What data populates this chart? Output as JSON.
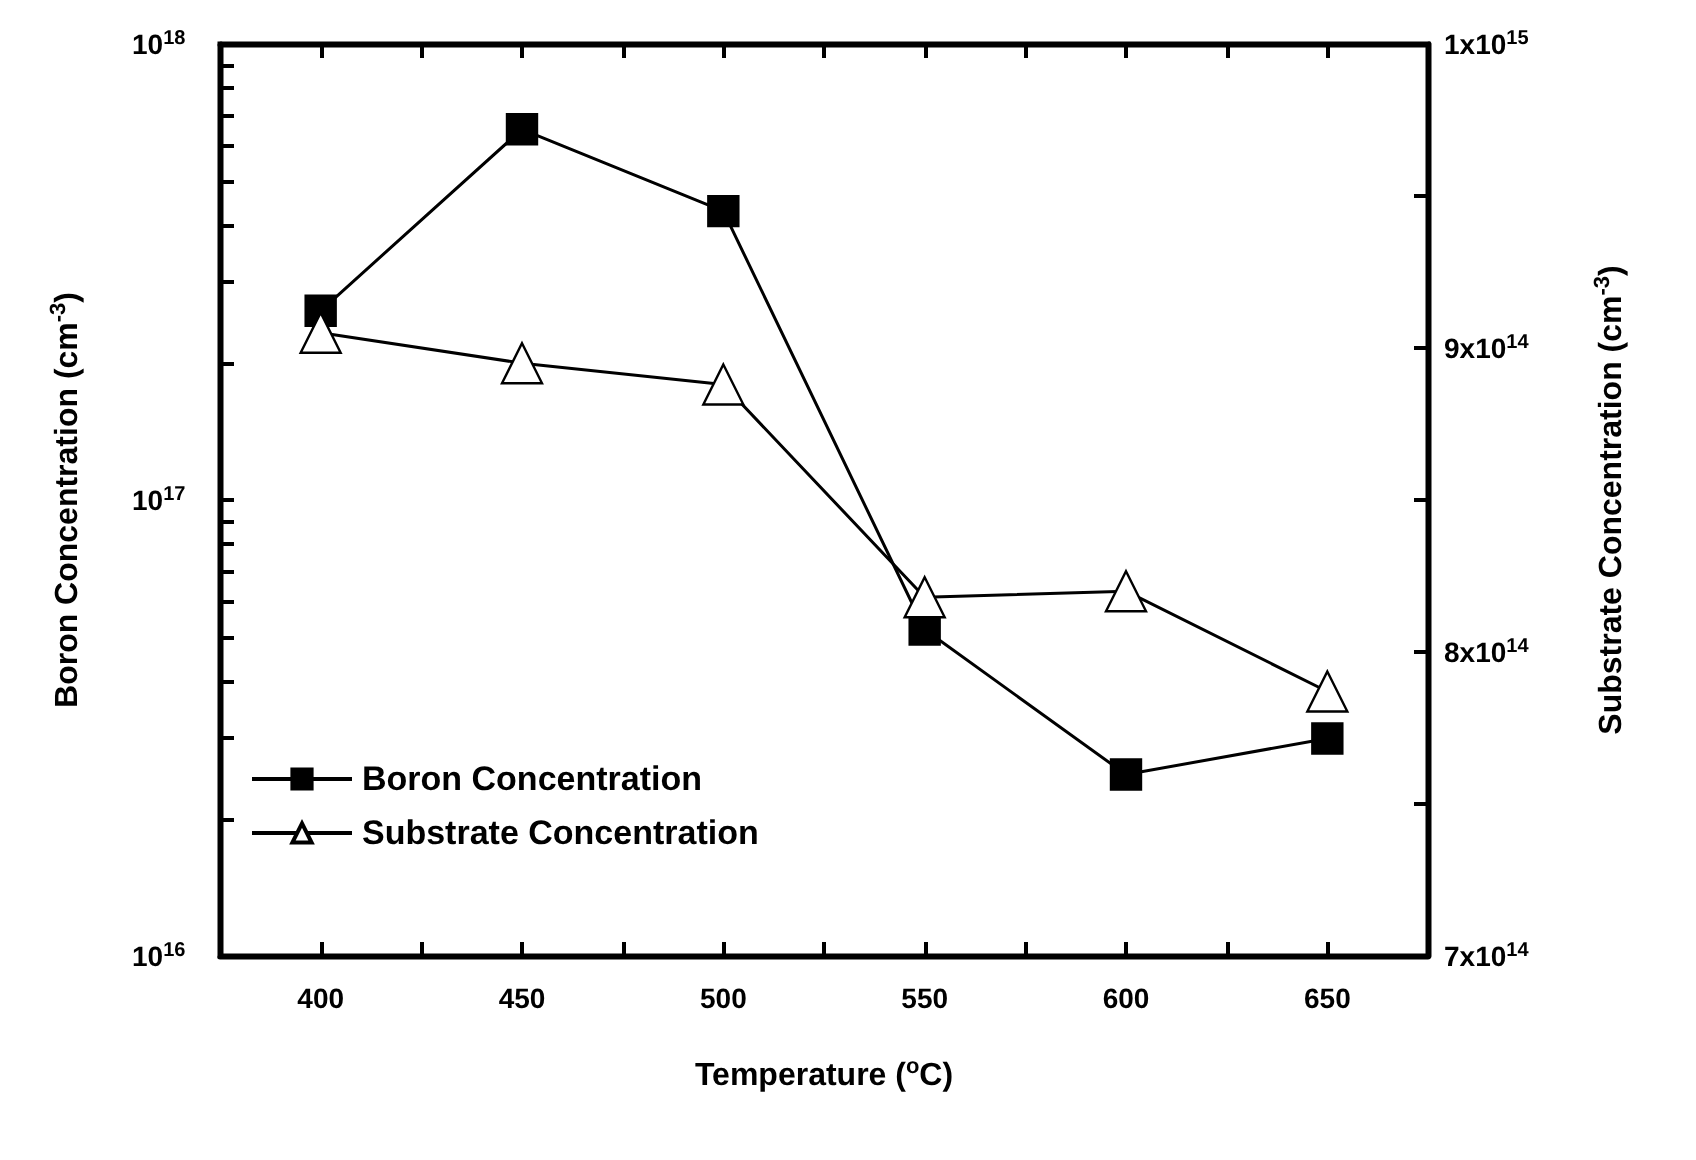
{
  "chart_data": {
    "type": "line",
    "xlabel": "Temperature ($^{o}$C)",
    "ylabel": "Boron Concentration (cm$^{-3}$)",
    "y2label": "Substrate Concentration (cm$^{-3}$)",
    "x": [
      400,
      450,
      500,
      550,
      600,
      650
    ],
    "series": [
      {
        "name": "Boron Concentration",
        "color": "#000000",
        "marker": "square",
        "values": [
          2.6e+17,
          6.5e+17,
          4.3e+17,
          5.2e+16,
          2.5e+16,
          3e+16
        ]
      },
      {
        "name": "Substrate Concentration",
        "color": "#000000",
        "marker": "triangle",
        "axis": "y2",
        "values": [
          905000000000000.0,
          895000000000000.0,
          888000000000000.0,
          818000000000000.0,
          820000000000000.0,
          787000000000000.0
        ]
      }
    ],
    "xlim": [
      375,
      675
    ],
    "xticks": [
      400,
      {
        "value": 425,
        "label": null
      },
      450,
      {
        "value": 475,
        "label": null
      },
      500,
      {
        "value": 525,
        "label": null
      },
      550,
      {
        "value": 575,
        "label": null
      },
      600,
      {
        "value": 625,
        "label": null
      },
      650
    ],
    "log": "y",
    "ylim": [
      1e+16,
      1e+18
    ],
    "yticks": [
      {
        "value": 1e+16,
        "label": "10$^{16}$"
      },
      {
        "value": 2e+16,
        "label": null
      },
      {
        "value": 3e+16,
        "label": null
      },
      {
        "value": 4e+16,
        "label": null
      },
      {
        "value": 5e+16,
        "label": null
      },
      {
        "value": 6e+16,
        "label": null
      },
      {
        "value": 7e+16,
        "label": null
      },
      {
        "value": 8e+16,
        "label": null
      },
      {
        "value": 9e+16,
        "label": null
      },
      {
        "value": 1e+17,
        "label": "10$^{17}$"
      },
      {
        "value": 2e+17,
        "label": null
      },
      {
        "value": 3e+17,
        "label": null
      },
      {
        "value": 4e+17,
        "label": null
      },
      {
        "value": 5e+17,
        "label": null
      },
      {
        "value": 6e+17,
        "label": null
      },
      {
        "value": 7e+17,
        "label": null
      },
      {
        "value": 8e+17,
        "label": null
      },
      {
        "value": 9e+17,
        "label": null
      },
      {
        "value": 1e+18,
        "label": "10$^{18}$"
      }
    ],
    "y2lim": [
      700000000000000.0,
      1000000000000000.0
    ],
    "y2ticks": [
      {
        "value": 700000000000000.0,
        "label": "7x10$^{14}$"
      },
      {
        "value": 750000000000000.0,
        "label": null
      },
      {
        "value": 800000000000000.0,
        "label": "8x10$^{14}$"
      },
      {
        "value": 850000000000000.0,
        "label": null
      },
      {
        "value": 900000000000000.0,
        "label": "9x10$^{14}$"
      },
      {
        "value": 950000000000000.0,
        "label": null
      },
      {
        "value": 1000000000000000.0,
        "label": "1x10$^{15}$"
      }
    ],
    "legend": "bottom left",
    "grid": false,
    "line_style": "solid"
  }
}
